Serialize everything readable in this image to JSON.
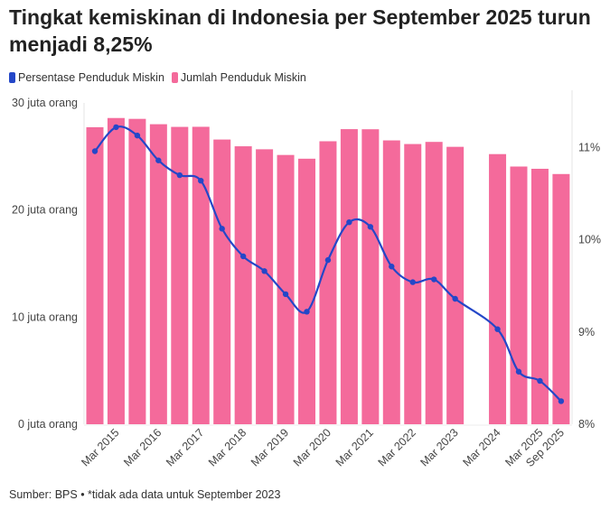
{
  "title": "Tingkat kemiskinan di Indonesia per September 2025 turun menjadi 8,25%",
  "legend": [
    {
      "label": "Persentase Penduduk Miskin",
      "color": "#2447c8"
    },
    {
      "label": "Jumlah Penduduk Miskin",
      "color": "#f46a9b"
    }
  ],
  "footer": "Sumber: BPS • *tidak ada data untuk September 2023",
  "chart_data": {
    "type": "bar+line",
    "title": "Tingkat kemiskinan di Indonesia per September 2025 turun menjadi 8,25%",
    "periods": [
      "Sep 2014",
      "Mar 2015",
      "Sep 2015",
      "Mar 2016",
      "Sep 2016",
      "Mar 2017",
      "Sep 2017",
      "Mar 2018",
      "Sep 2018",
      "Mar 2019",
      "Sep 2019",
      "Mar 2020",
      "Sep 2020",
      "Mar 2021",
      "Sep 2021",
      "Mar 2022",
      "Sep 2022",
      "Mar 2023",
      "Sep 2023",
      "Mar 2024",
      "Sep 2024",
      "Mar 2025",
      "Sep 2025"
    ],
    "x_tick_labels": [
      "Mar 2015",
      "Mar 2016",
      "Mar 2017",
      "Mar 2018",
      "Mar 2019",
      "Mar 2020",
      "Mar 2021",
      "Mar 2022",
      "Mar 2023",
      "Mar 2024",
      "Mar 2025",
      "Sep 2025"
    ],
    "series": [
      {
        "name": "Jumlah Penduduk Miskin",
        "type": "bar",
        "axis": "left",
        "unit": "juta orang",
        "values": [
          27.73,
          28.59,
          28.51,
          28.01,
          27.76,
          27.77,
          26.58,
          25.95,
          25.67,
          25.14,
          24.79,
          26.42,
          27.55,
          27.54,
          26.5,
          26.16,
          26.36,
          25.9,
          null,
          25.22,
          24.06,
          23.85,
          23.36
        ]
      },
      {
        "name": "Persentase Penduduk Miskin",
        "type": "line",
        "axis": "right",
        "unit": "%",
        "values": [
          10.96,
          11.22,
          11.13,
          10.86,
          10.7,
          10.64,
          10.12,
          9.82,
          9.66,
          9.41,
          9.22,
          9.78,
          10.19,
          10.14,
          9.71,
          9.54,
          9.57,
          9.36,
          null,
          9.03,
          8.57,
          8.47,
          8.25
        ]
      }
    ],
    "y_left": {
      "ticks": [
        "0 juta orang",
        "10 juta orang",
        "20 juta orang",
        "30 juta orang"
      ],
      "range": [
        0,
        30
      ]
    },
    "y_right": {
      "ticks": [
        "8%",
        "9%",
        "10%",
        "11%"
      ],
      "range": [
        8,
        11.5
      ]
    },
    "grid": false,
    "legend_position": "top-left"
  }
}
